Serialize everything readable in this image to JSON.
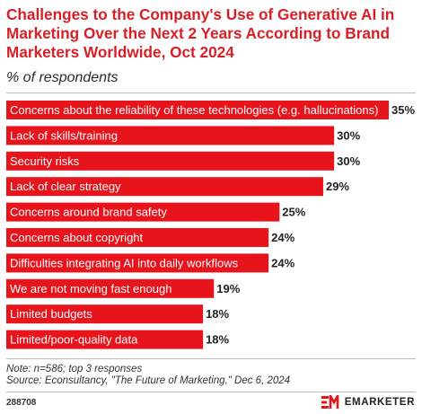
{
  "header": {
    "title": "Challenges to the Company's Use of Generative AI in Marketing Over the Next 2 Years According to Brand Marketers Worldwide, Oct 2024",
    "subtitle": "% of respondents"
  },
  "footer": {
    "note": "Note: n=586; top 3 responses",
    "source": "Source: Econsultancy, \"The Future of Marketing,\" Dec 6, 2024",
    "chart_id": "288708",
    "brand": "EMARKETER"
  },
  "colors": {
    "bar": "#e8141c",
    "title": "#d81f26",
    "bar_label": "#ffffff",
    "value_label": "#222222"
  },
  "icons": {
    "logo": "emarketer-logo-icon"
  },
  "chart_data": {
    "type": "bar",
    "orientation": "horizontal",
    "title": "Challenges to the Company's Use of Generative AI in Marketing Over the Next 2 Years According to Brand Marketers Worldwide, Oct 2024",
    "subtitle": "% of respondents",
    "xlabel": "",
    "ylabel": "",
    "xlim": [
      0,
      35
    ],
    "grid": false,
    "legend": "none",
    "value_suffix": "%",
    "categories": [
      "Concerns about the reliability of these technologies (e.g. hallucinations)",
      "Lack of skills/training",
      "Security risks",
      "Lack of clear strategy",
      "Concerns around brand safety",
      "Concerns about copyright",
      "Difficulties integrating AI into daily workflows",
      "We are not moving fast enough",
      "Limited budgets",
      "Limited/poor-quality data"
    ],
    "values": [
      35,
      30,
      30,
      29,
      25,
      24,
      24,
      19,
      18,
      18
    ]
  }
}
